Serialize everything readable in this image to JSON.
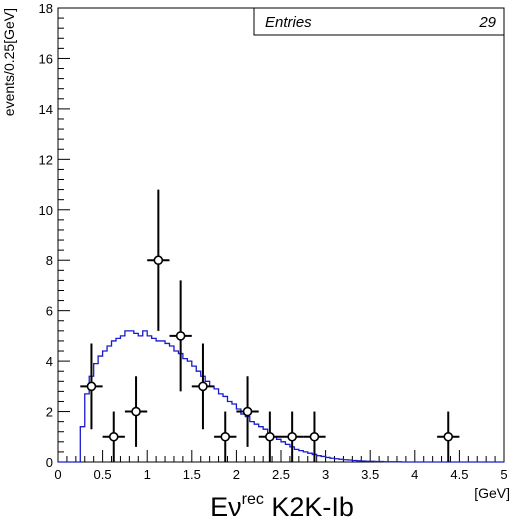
{
  "chart_data": {
    "type": "line",
    "xlabel_main": "Eν",
    "xlabel_sup": "rec",
    "xlabel_tail": " K2K-Ib",
    "xunit": "[GeV]",
    "ylabel": "events/0.25[GeV]",
    "xlim": [
      0,
      5
    ],
    "ylim": [
      0,
      18
    ],
    "x_ticks": [
      0,
      0.5,
      1,
      1.5,
      2,
      2.5,
      3,
      3.5,
      4,
      4.5,
      5
    ],
    "x_tick_labels": [
      "0",
      "0.5",
      "1",
      "1.5",
      "2",
      "2.5",
      "3",
      "3.5",
      "4",
      "4.5",
      "5"
    ],
    "y_ticks": [
      0,
      2,
      4,
      6,
      8,
      10,
      12,
      14,
      16,
      18
    ],
    "y_tick_labels": [
      "0",
      "2",
      "4",
      "6",
      "8",
      "10",
      "12",
      "14",
      "16",
      "18"
    ],
    "stats": {
      "label": "Entries",
      "value": "29"
    },
    "mc_color": "#1a1acc",
    "mc_histogram": {
      "bin_width": 0.05,
      "start": 0.0,
      "values": [
        0,
        0,
        0,
        0,
        0,
        1.4,
        2.7,
        3.4,
        3.9,
        4.2,
        4.4,
        4.6,
        4.8,
        4.9,
        5.0,
        5.2,
        5.2,
        5.1,
        5.0,
        5.2,
        5.0,
        4.9,
        4.8,
        4.8,
        4.7,
        4.6,
        4.4,
        4.3,
        4.1,
        4.0,
        3.8,
        3.6,
        3.4,
        3.2,
        3.0,
        2.9,
        2.7,
        2.6,
        2.4,
        2.3,
        2.1,
        1.9,
        1.8,
        1.6,
        1.5,
        1.4,
        1.3,
        1.1,
        1.0,
        0.9,
        0.8,
        0.7,
        0.6,
        0.5,
        0.45,
        0.4,
        0.35,
        0.3,
        0.25,
        0.22,
        0.18,
        0.15,
        0.13,
        0.11,
        0.09,
        0.08,
        0.06,
        0.05,
        0.04,
        0.03,
        0.03,
        0.02,
        0.02,
        0.01,
        0.01,
        0.01,
        0.01,
        0,
        0,
        0,
        0,
        0,
        0,
        0,
        0,
        0,
        0,
        0,
        0,
        0,
        0,
        0,
        0,
        0,
        0,
        0,
        0,
        0,
        0,
        0
      ]
    },
    "data_points": [
      {
        "x": 0.375,
        "y": 3,
        "xerr": 0.125,
        "yerr_low": 1.7,
        "yerr_high": 1.7
      },
      {
        "x": 0.625,
        "y": 1,
        "xerr": 0.125,
        "yerr_low": 1.0,
        "yerr_high": 1.0
      },
      {
        "x": 0.875,
        "y": 2,
        "xerr": 0.125,
        "yerr_low": 1.4,
        "yerr_high": 1.4
      },
      {
        "x": 1.125,
        "y": 8,
        "xerr": 0.125,
        "yerr_low": 2.8,
        "yerr_high": 2.8
      },
      {
        "x": 1.375,
        "y": 5,
        "xerr": 0.125,
        "yerr_low": 2.2,
        "yerr_high": 2.2
      },
      {
        "x": 1.625,
        "y": 3,
        "xerr": 0.125,
        "yerr_low": 1.7,
        "yerr_high": 1.7
      },
      {
        "x": 1.875,
        "y": 1,
        "xerr": 0.125,
        "yerr_low": 1.0,
        "yerr_high": 1.0
      },
      {
        "x": 2.125,
        "y": 2,
        "xerr": 0.125,
        "yerr_low": 1.4,
        "yerr_high": 1.4
      },
      {
        "x": 2.375,
        "y": 1,
        "xerr": 0.125,
        "yerr_low": 1.0,
        "yerr_high": 1.0
      },
      {
        "x": 2.625,
        "y": 1,
        "xerr": 0.125,
        "yerr_low": 1.0,
        "yerr_high": 1.0
      },
      {
        "x": 2.875,
        "y": 1,
        "xerr": 0.125,
        "yerr_low": 1.0,
        "yerr_high": 1.0
      },
      {
        "x": 4.375,
        "y": 1,
        "xerr": 0.125,
        "yerr_low": 1.0,
        "yerr_high": 1.0
      }
    ]
  }
}
